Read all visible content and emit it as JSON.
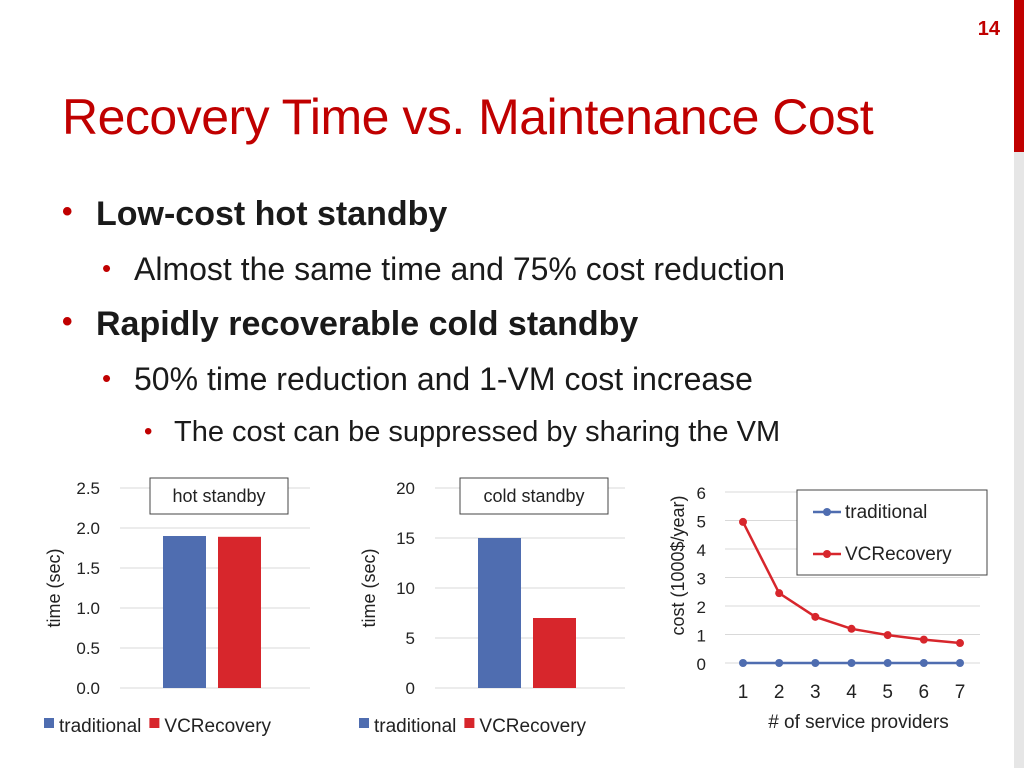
{
  "slide_number": "14",
  "title": "Recovery Time vs. Maintenance Cost",
  "bullets": {
    "b1": "Low-cost hot standby",
    "b1_1": "Almost the same time and 75% cost reduction",
    "b2": "Rapidly recoverable cold standby",
    "b2_1": "50% time reduction and 1-VM cost increase",
    "b2_1_1": "The cost can be suppressed by sharing the VM"
  },
  "colors": {
    "accent": "#c00000",
    "traditional": "#4f6db0",
    "vcrecovery": "#d7262c"
  },
  "chart_data": [
    {
      "type": "bar",
      "annotation": "hot standby",
      "categories": [
        ""
      ],
      "series": [
        {
          "name": "traditional",
          "values": [
            1.9
          ]
        },
        {
          "name": "VCRecovery",
          "values": [
            1.89
          ]
        }
      ],
      "xlabel": "",
      "ylabel": "time (sec)",
      "ylim": [
        0,
        2.5
      ],
      "yticks": [
        "0.0",
        "0.5",
        "1.0",
        "1.5",
        "2.0",
        "2.5"
      ],
      "grid": true,
      "legend": "bottom"
    },
    {
      "type": "bar",
      "annotation": "cold standby",
      "categories": [
        ""
      ],
      "series": [
        {
          "name": "traditional",
          "values": [
            15
          ]
        },
        {
          "name": "VCRecovery",
          "values": [
            7
          ]
        }
      ],
      "xlabel": "",
      "ylabel": "time (sec)",
      "ylim": [
        0,
        20
      ],
      "yticks": [
        "0",
        "5",
        "10",
        "15",
        "20"
      ],
      "grid": true,
      "legend": "bottom"
    },
    {
      "type": "line",
      "x": [
        1,
        2,
        3,
        4,
        5,
        6,
        7
      ],
      "series": [
        {
          "name": "traditional",
          "values": [
            0,
            0,
            0,
            0,
            0,
            0,
            0
          ]
        },
        {
          "name": "VCRecovery",
          "values": [
            4.95,
            2.45,
            1.62,
            1.2,
            0.98,
            0.82,
            0.7
          ]
        }
      ],
      "xlabel": "# of service providers",
      "ylabel": "cost (1000$/year)",
      "ylim": [
        0,
        6
      ],
      "yticks": [
        "0",
        "1",
        "2",
        "3",
        "4",
        "5",
        "6"
      ],
      "xticks": [
        "1",
        "2",
        "3",
        "4",
        "5",
        "6",
        "7"
      ],
      "grid": true,
      "legend": "top-right"
    }
  ]
}
